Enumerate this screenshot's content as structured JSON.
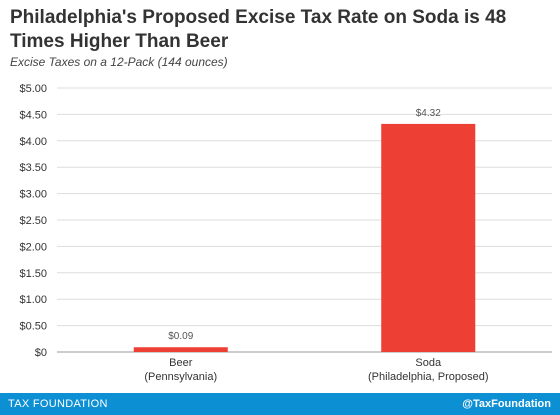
{
  "chart_data": {
    "type": "bar",
    "title": "Philadelphia's Proposed Excise Tax Rate on Soda is 48 Times Higher Than Beer",
    "subtitle": "Excise Taxes on a 12-Pack (144 ounces)",
    "categories": [
      [
        "Beer",
        "(Pennsylvania)"
      ],
      [
        "Soda",
        "(Philadelphia, Proposed)"
      ]
    ],
    "values": [
      0.09,
      4.32
    ],
    "data_labels": [
      "$0.09",
      "$4.32"
    ],
    "ylim": [
      0,
      5
    ],
    "yticks": [
      0,
      0.5,
      1,
      1.5,
      2,
      2.5,
      3,
      3.5,
      4,
      4.5,
      5
    ],
    "ytick_labels": [
      "$0",
      "$0.50",
      "$1.00",
      "$1.50",
      "$2.00",
      "$2.50",
      "$3.00",
      "$3.50",
      "$4.00",
      "$4.50",
      "$5.00"
    ],
    "grid": true,
    "bar_color": "#ee3f35",
    "grid_color": "#dddddd",
    "xlabel": "",
    "ylabel": ""
  },
  "footer": {
    "left_text": "TAX FOUNDATION",
    "right_text": "@TaxFoundation",
    "background": "#0d8fd4"
  }
}
